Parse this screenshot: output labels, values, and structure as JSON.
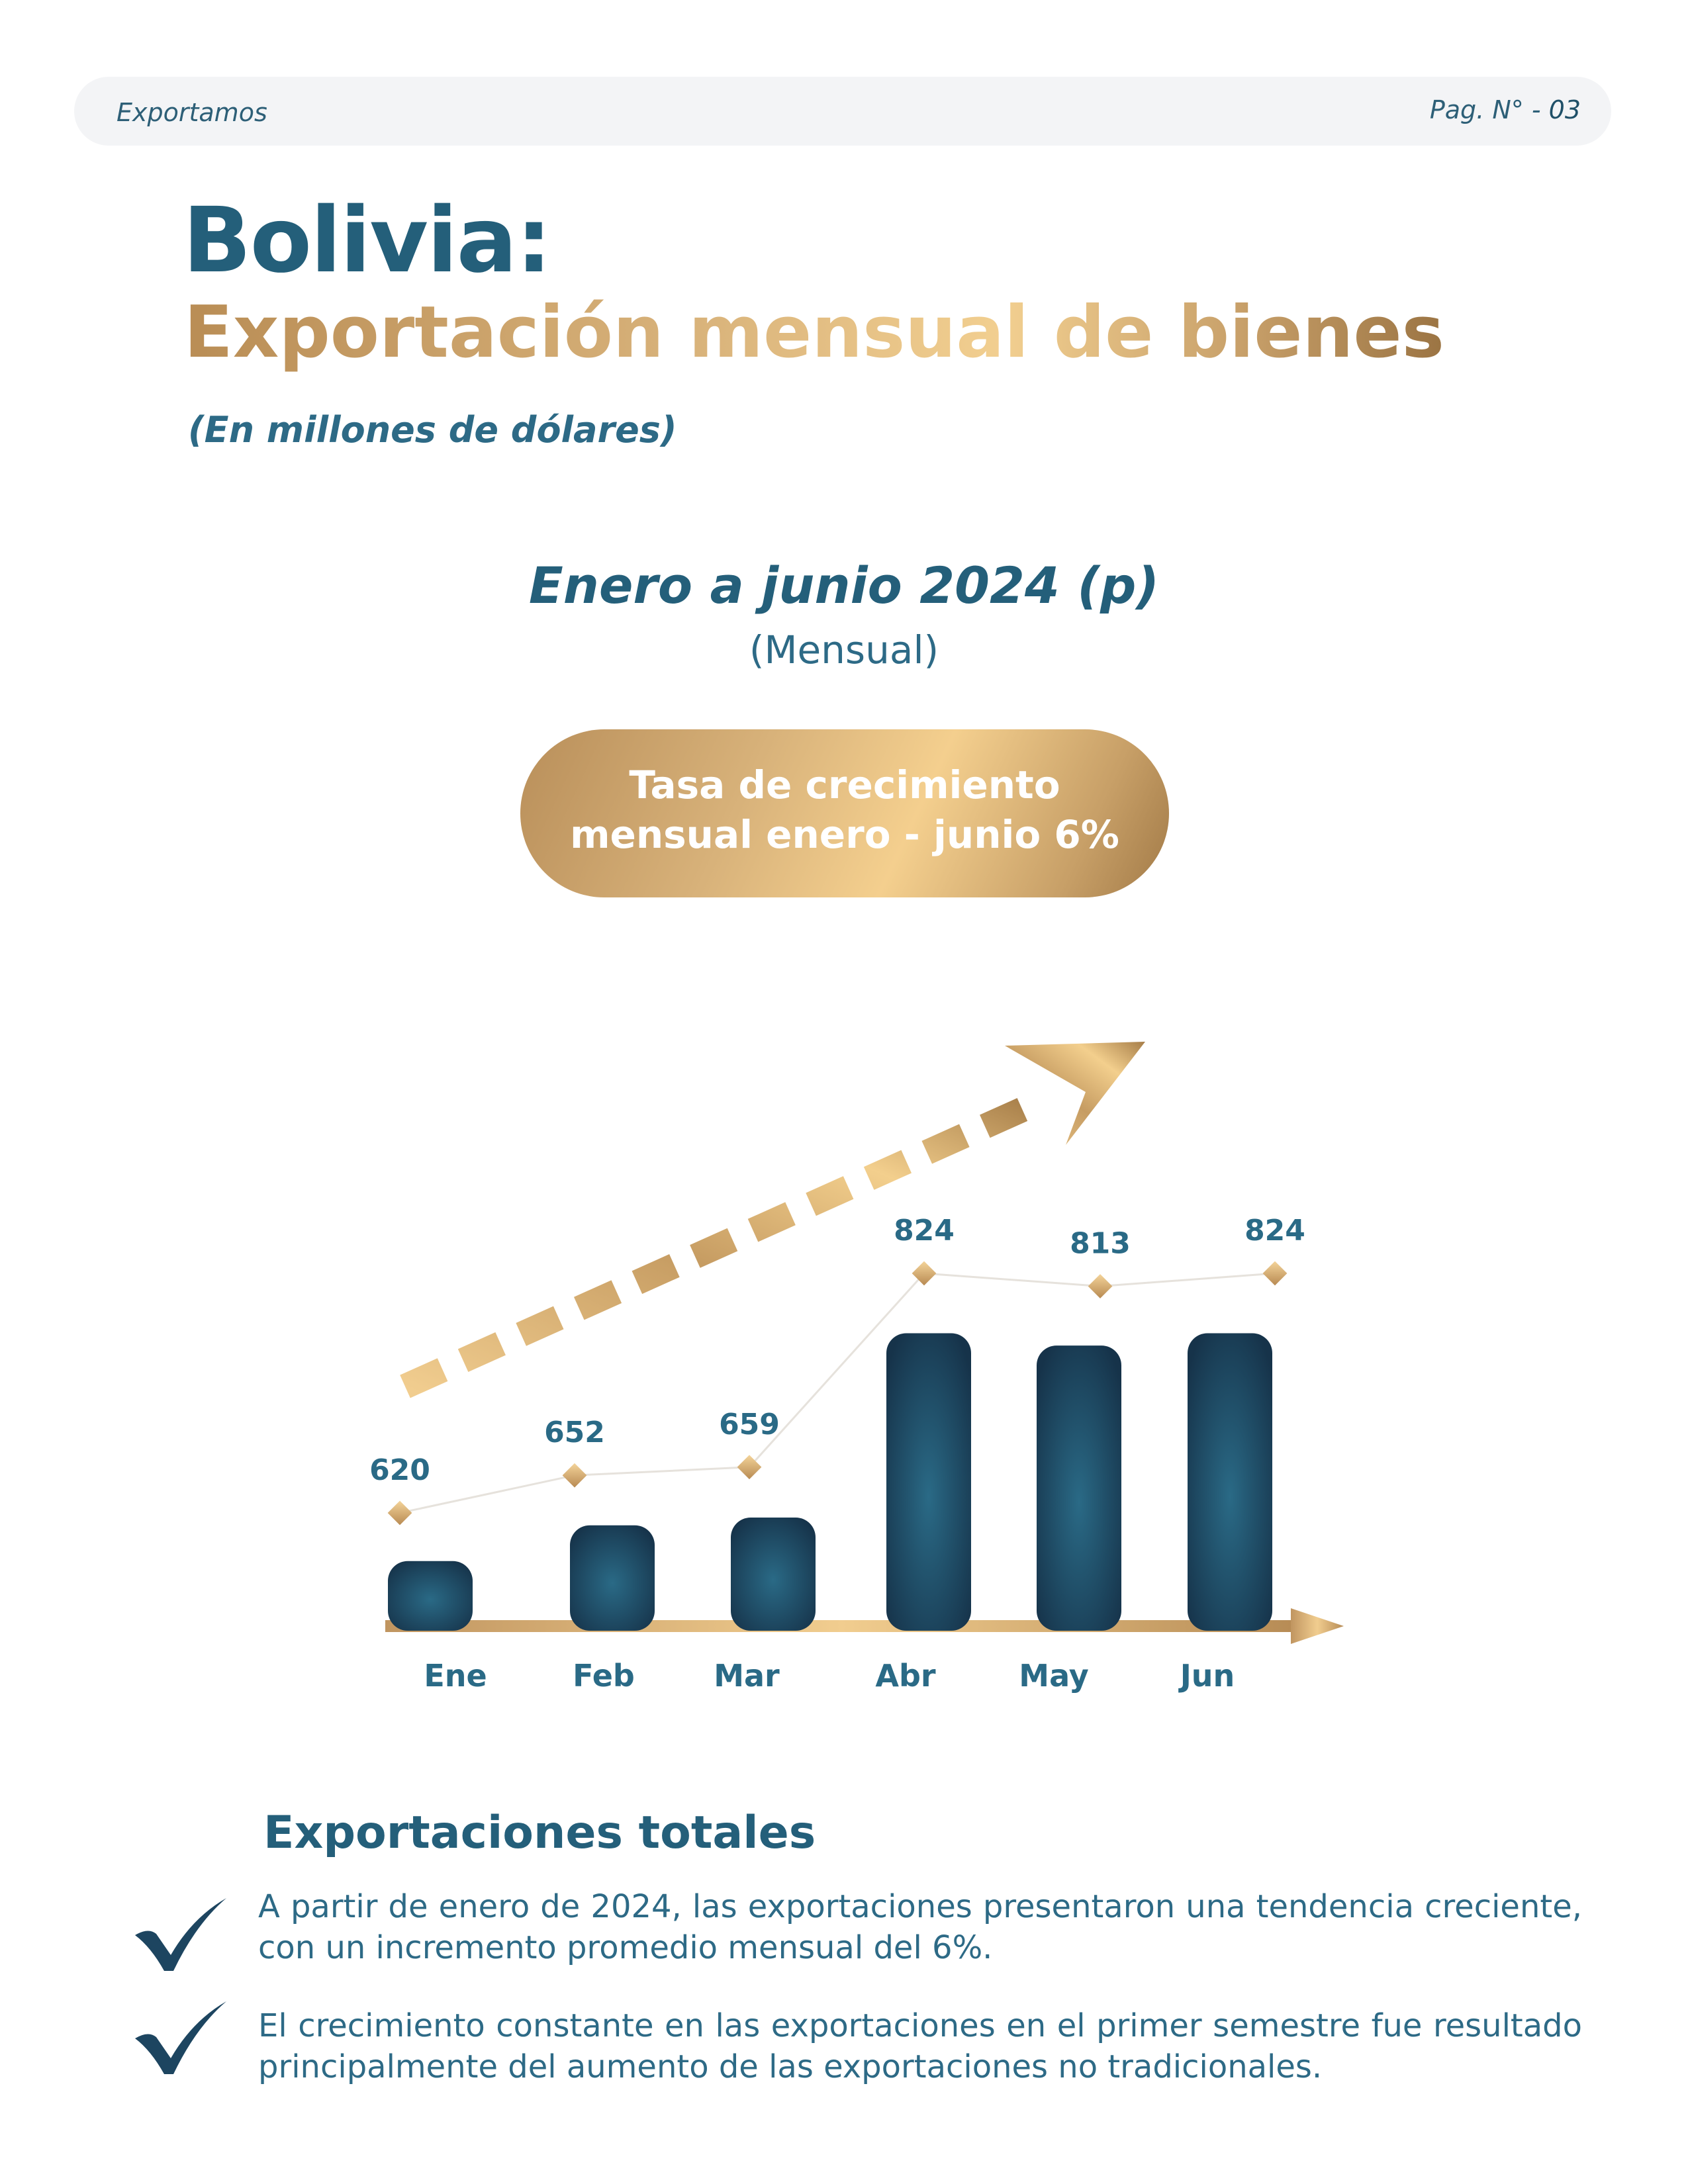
{
  "header": {
    "section": "Exportamos",
    "page_label": "Pag. N° -",
    "page_number": "03"
  },
  "title": {
    "line1": "Bolivia:",
    "line2": "Exportación mensual de bienes",
    "units": "(En millones de dólares)"
  },
  "chart_header": {
    "period": "Enero a junio 2024 (p)",
    "frequency": "(Mensual)"
  },
  "growth_badge": {
    "line1": "Tasa de crecimiento",
    "line2": "mensual enero - junio 6%"
  },
  "colors": {
    "teal": "#245f7a",
    "navy": "#163349",
    "gold": "#d4ac72",
    "gold_light": "#f4cf8e"
  },
  "chart_data": {
    "type": "bar",
    "categories": [
      "Ene",
      "Feb",
      "Mar",
      "Abr",
      "May",
      "Jun"
    ],
    "values": [
      620,
      652,
      659,
      824,
      813,
      824
    ],
    "data_labels": [
      "620",
      "652",
      "659",
      "824",
      "813",
      "824"
    ],
    "title": "",
    "xlabel": "",
    "ylabel": "",
    "grid": false,
    "legend": "none"
  },
  "summary": {
    "title": "Exportaciones totales",
    "bullets": [
      "A partir de enero de 2024, las exportaciones presentaron una tendencia creciente, con un incremento promedio mensual del 6%.",
      "El crecimiento constante en las exportaciones en el primer semestre fue resultado principalmente del aumento de las exportaciones no tradicionales."
    ]
  }
}
